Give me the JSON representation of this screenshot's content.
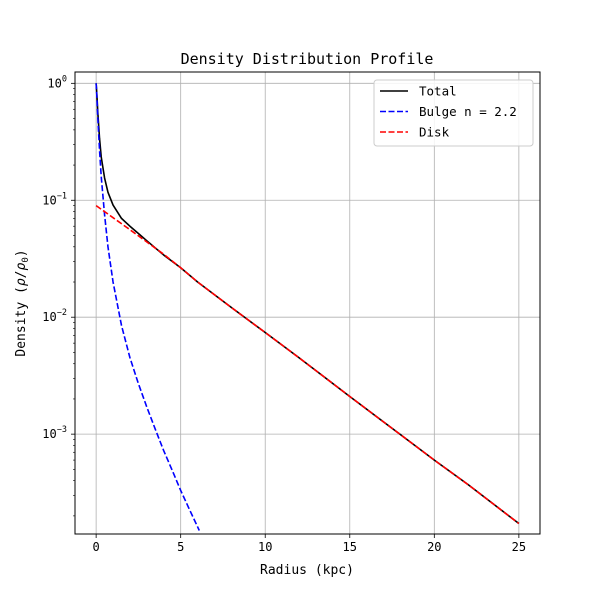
{
  "chart_data": {
    "type": "line",
    "title": "Density Distribution Profile",
    "xlabel": "Radius (kpc)",
    "ylabel_parts": [
      "Density (",
      "ρ",
      "/",
      "ρ",
      "0",
      ")"
    ],
    "xscale": "linear",
    "yscale": "log",
    "xlim": [
      -1.25,
      26.25
    ],
    "ylim": [
      0.00014,
      1.25
    ],
    "xticks": [
      0,
      5,
      10,
      15,
      20,
      25
    ],
    "xtick_labels": [
      "0",
      "5",
      "10",
      "15",
      "20",
      "25"
    ],
    "yticks": [
      0.001,
      0.01,
      0.1,
      1
    ],
    "ytick_labels": [
      {
        "base": "10",
        "exp": "−3"
      },
      {
        "base": "10",
        "exp": "−2"
      },
      {
        "base": "10",
        "exp": "−1"
      },
      {
        "base": "10",
        "exp": "0"
      }
    ],
    "grid": true,
    "legend_position": "top-right",
    "series": [
      {
        "name": "Total",
        "color": "#000000",
        "dash": "solid",
        "x": [
          0,
          0.05,
          0.1,
          0.2,
          0.3,
          0.5,
          0.7,
          1,
          1.5,
          2,
          2.5,
          3,
          4,
          5,
          6,
          8,
          10,
          12,
          15,
          18,
          20,
          22,
          25
        ],
        "y": [
          1.0,
          0.77,
          0.56,
          0.34,
          0.235,
          0.155,
          0.117,
          0.091,
          0.07,
          0.06,
          0.052,
          0.045,
          0.034,
          0.0265,
          0.02,
          0.0121,
          0.0074,
          0.0045,
          0.0021,
          0.00099,
          0.0006,
          0.00037,
          0.000172
        ]
      },
      {
        "name": "Bulge n = 2.2",
        "color": "#0000ff",
        "dash": "dashed",
        "x": [
          0,
          0.05,
          0.1,
          0.2,
          0.3,
          0.5,
          0.7,
          1,
          1.5,
          2,
          2.5,
          3,
          3.5,
          4,
          4.5,
          5,
          5.5,
          6.1
        ],
        "y": [
          1.0,
          0.74,
          0.5,
          0.27,
          0.16,
          0.075,
          0.04,
          0.02,
          0.0085,
          0.0045,
          0.0027,
          0.0017,
          0.0011,
          0.00072,
          0.00049,
          0.00033,
          0.00023,
          0.00015
        ]
      },
      {
        "name": "Disk",
        "color": "#ff0000",
        "dash": "dashed",
        "x": [
          0,
          1,
          2,
          3,
          4,
          5,
          6,
          8,
          10,
          12,
          15,
          18,
          20,
          22,
          25
        ],
        "y": [
          0.09,
          0.071,
          0.056,
          0.044,
          0.0345,
          0.0265,
          0.02,
          0.0121,
          0.0074,
          0.0045,
          0.0021,
          0.00099,
          0.0006,
          0.00037,
          0.000172
        ]
      }
    ]
  }
}
